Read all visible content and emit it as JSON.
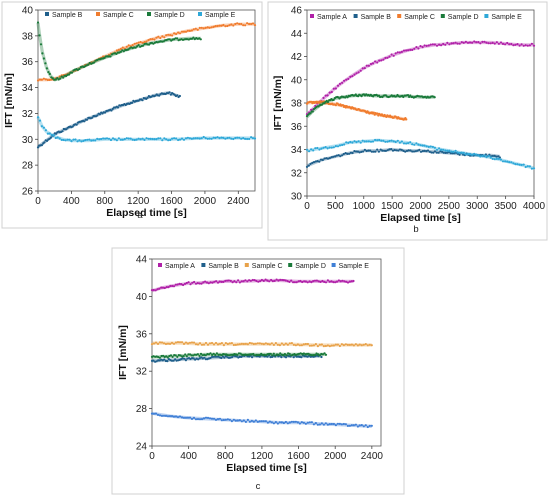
{
  "chart_data": [
    {
      "type": "scatter",
      "panel_label": "a",
      "xlabel": "Elapsed time [s]",
      "ylabel": "IFT [mN/m]",
      "xlim": [
        0,
        2600
      ],
      "ylim": [
        26,
        40
      ],
      "xticks": [
        0,
        400,
        800,
        1200,
        1600,
        2000,
        2400
      ],
      "yticks": [
        26,
        28,
        30,
        32,
        34,
        36,
        38,
        40
      ],
      "legend_position": "top",
      "series": [
        {
          "name": "Sample B",
          "color": "#1f5f8b",
          "x": [
            0,
            100,
            200,
            400,
            600,
            800,
            1000,
            1200,
            1400,
            1560,
            1700
          ],
          "y": [
            29.4,
            29.9,
            30.4,
            31.0,
            31.6,
            32.1,
            32.6,
            33.0,
            33.4,
            33.6,
            33.3
          ]
        },
        {
          "name": "Sample C",
          "color": "#f07c2e",
          "x": [
            0,
            100,
            200,
            300,
            400,
            600,
            800,
            1000,
            1200,
            1400,
            1600,
            1800,
            2000,
            2200,
            2400,
            2600
          ],
          "y": [
            34.6,
            34.6,
            34.7,
            34.9,
            35.2,
            35.8,
            36.4,
            37.0,
            37.4,
            37.8,
            38.1,
            38.4,
            38.6,
            38.8,
            38.9,
            38.9
          ]
        },
        {
          "name": "Sample D",
          "color": "#1a7a3a",
          "x": [
            0,
            20,
            50,
            100,
            150,
            200,
            300,
            400,
            600,
            800,
            1000,
            1200,
            1400,
            1600,
            1800,
            1950
          ],
          "y": [
            39.0,
            38.0,
            36.8,
            35.6,
            34.9,
            34.6,
            34.8,
            35.2,
            35.8,
            36.3,
            36.8,
            37.2,
            37.5,
            37.7,
            37.8,
            37.8
          ]
        },
        {
          "name": "Sample E",
          "color": "#2ea8d8",
          "x": [
            0,
            50,
            100,
            200,
            300,
            400,
            600,
            800,
            1200,
            1600,
            2000,
            2400,
            2600
          ],
          "y": [
            31.7,
            31.0,
            30.6,
            30.2,
            30.0,
            29.9,
            29.9,
            30.0,
            30.0,
            30.0,
            30.1,
            30.1,
            30.1
          ]
        }
      ]
    },
    {
      "type": "scatter",
      "panel_label": "b",
      "xlabel": "Elapsed time [s]",
      "ylabel": "IFT [mN/m]",
      "xlim": [
        0,
        4000
      ],
      "ylim": [
        30,
        46
      ],
      "xticks": [
        0,
        500,
        1000,
        1500,
        2000,
        2500,
        3000,
        3500,
        4000
      ],
      "yticks": [
        30,
        32,
        34,
        36,
        38,
        40,
        42,
        44,
        46
      ],
      "legend_position": "top",
      "series": [
        {
          "name": "Sample A",
          "color": "#b020a8",
          "x": [
            0,
            250,
            500,
            750,
            1000,
            1250,
            1500,
            1750,
            2000,
            2250,
            2500,
            2750,
            3000,
            3250,
            3500,
            3750,
            4000
          ],
          "y": [
            37.0,
            38.2,
            39.3,
            40.2,
            41.0,
            41.6,
            42.1,
            42.5,
            42.8,
            43.0,
            43.1,
            43.2,
            43.2,
            43.2,
            43.1,
            43.0,
            43.0
          ]
        },
        {
          "name": "Sample B",
          "color": "#1f5f8b",
          "x": [
            0,
            250,
            500,
            750,
            1000,
            1250,
            1500,
            1750,
            2000,
            2250,
            2500,
            2750,
            3000,
            3250,
            3400
          ],
          "y": [
            32.6,
            33.1,
            33.4,
            33.7,
            33.9,
            33.9,
            34.0,
            33.9,
            33.9,
            33.8,
            33.7,
            33.6,
            33.5,
            33.5,
            33.4
          ]
        },
        {
          "name": "Sample C",
          "color": "#f07c2e",
          "x": [
            0,
            250,
            500,
            750,
            1000,
            1250,
            1500,
            1750
          ],
          "y": [
            38.0,
            38.1,
            37.9,
            37.6,
            37.3,
            37.0,
            36.8,
            36.6
          ]
        },
        {
          "name": "Sample D",
          "color": "#1a7a3a",
          "x": [
            0,
            100,
            250,
            500,
            750,
            1000,
            1250,
            1500,
            1750,
            2000,
            2250
          ],
          "y": [
            36.8,
            37.3,
            37.9,
            38.4,
            38.6,
            38.7,
            38.6,
            38.6,
            38.6,
            38.5,
            38.5
          ]
        },
        {
          "name": "Sample E",
          "color": "#2ea8d8",
          "x": [
            0,
            250,
            500,
            750,
            1000,
            1250,
            1500,
            1750,
            2000,
            2250,
            2500,
            2750,
            3000,
            3250,
            3500,
            3750,
            4000
          ],
          "y": [
            33.9,
            34.1,
            34.3,
            34.6,
            34.7,
            34.8,
            34.7,
            34.6,
            34.4,
            34.1,
            33.9,
            33.7,
            33.5,
            33.3,
            33.0,
            32.7,
            32.4
          ]
        }
      ]
    },
    {
      "type": "scatter",
      "panel_label": "c",
      "xlabel": "Elapsed time [s]",
      "ylabel": "IFT [mN/m]",
      "xlim": [
        0,
        2500
      ],
      "ylim": [
        24,
        44
      ],
      "xticks": [
        0,
        400,
        800,
        1200,
        1600,
        2000,
        2400
      ],
      "yticks": [
        24,
        28,
        32,
        36,
        40,
        44
      ],
      "legend_position": "top",
      "series": [
        {
          "name": "Sample A",
          "color": "#b020a8",
          "x": [
            0,
            100,
            200,
            400,
            600,
            800,
            1000,
            1200,
            1400,
            1600,
            1800,
            2000,
            2200
          ],
          "y": [
            40.6,
            40.9,
            41.1,
            41.4,
            41.5,
            41.6,
            41.6,
            41.7,
            41.7,
            41.6,
            41.6,
            41.6,
            41.6
          ]
        },
        {
          "name": "Sample B",
          "color": "#1f5f8b",
          "x": [
            0,
            200,
            400,
            600,
            800,
            1000,
            1200,
            1400,
            1600,
            1800,
            1850
          ],
          "y": [
            33.1,
            33.2,
            33.3,
            33.4,
            33.5,
            33.6,
            33.6,
            33.6,
            33.6,
            33.6,
            33.6
          ]
        },
        {
          "name": "Sample C",
          "color": "#e8a24a",
          "x": [
            0,
            300,
            600,
            900,
            1200,
            1500,
            1800,
            2100,
            2400
          ],
          "y": [
            35.0,
            35.0,
            34.9,
            34.9,
            34.9,
            34.9,
            34.8,
            34.8,
            34.8
          ]
        },
        {
          "name": "Sample D",
          "color": "#1a7a3a",
          "x": [
            0,
            200,
            400,
            600,
            800,
            1000,
            1200,
            1400,
            1600,
            1800,
            1900
          ],
          "y": [
            33.5,
            33.6,
            33.7,
            33.8,
            33.8,
            33.8,
            33.8,
            33.8,
            33.8,
            33.8,
            33.8
          ]
        },
        {
          "name": "Sample E",
          "color": "#3f7fd6",
          "x": [
            0,
            200,
            400,
            600,
            800,
            1000,
            1200,
            1400,
            1600,
            1800,
            2000,
            2200,
            2400
          ],
          "y": [
            27.5,
            27.2,
            27.0,
            26.9,
            26.8,
            26.7,
            26.6,
            26.5,
            26.5,
            26.4,
            26.3,
            26.2,
            26.1
          ]
        }
      ]
    }
  ]
}
